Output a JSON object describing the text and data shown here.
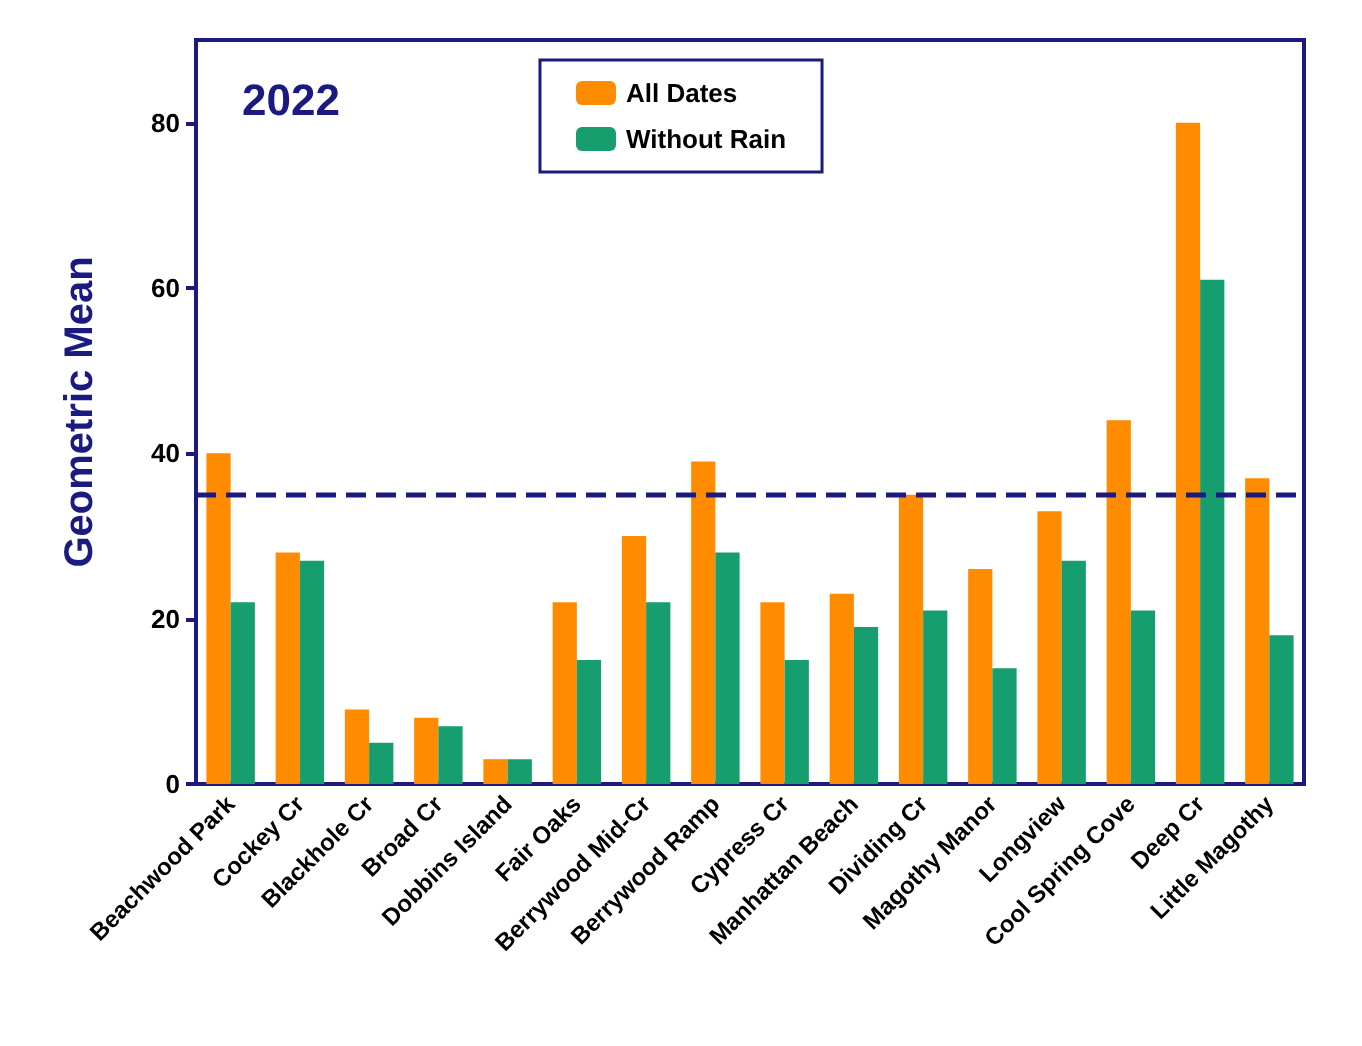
{
  "chart_data": {
    "type": "bar",
    "title": "2022",
    "ylabel": "Geometric Mean",
    "categories": [
      "Beachwood Park",
      "Cockey Cr",
      "Blackhole Cr",
      "Broad Cr",
      "Dobbins Island",
      "Fair Oaks",
      "Berrywood Mid-Cr",
      "Berrywood Ramp",
      "Cypress Cr",
      "Manhattan Beach",
      "Dividing Cr",
      "Magothy Manor",
      "Longview",
      "Cool Spring Cove",
      "Deep Cr",
      "Little Magothy"
    ],
    "series": [
      {
        "name": "All Dates",
        "color": "#ff8c00",
        "values": [
          40,
          28,
          9,
          8,
          3,
          22,
          30,
          39,
          22,
          23,
          35,
          26,
          33,
          44,
          80,
          37
        ]
      },
      {
        "name": "Without Rain",
        "color": "#169e6e",
        "values": [
          22,
          27,
          5,
          7,
          3,
          15,
          22,
          28,
          15,
          19,
          21,
          14,
          27,
          21,
          61,
          18
        ]
      }
    ],
    "ylim": [
      0,
      90
    ],
    "yticks": [
      0,
      20,
      40,
      60,
      80
    ],
    "grid": false,
    "legend": "top",
    "ref_lines": [
      {
        "axis": "y",
        "value": 35,
        "color": "#1a1a80",
        "line_style": "dashed"
      }
    ]
  }
}
